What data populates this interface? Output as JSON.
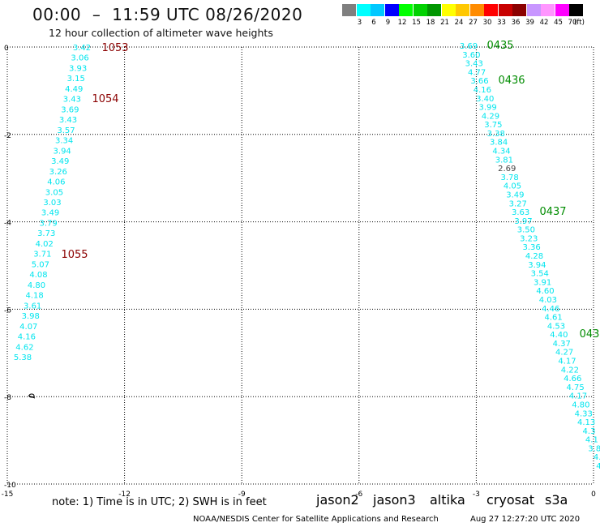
{
  "header": {
    "title": "00:00  –  11:59 UTC 08/26/2020",
    "subtitle": "12 hour collection of altimeter wave heights"
  },
  "colorbar": {
    "colors": [
      "#7f7f7f",
      "#00ffff",
      "#00c8ff",
      "#0000ff",
      "#00ff00",
      "#00d200",
      "#009600",
      "#ffff00",
      "#ffc800",
      "#ff8c00",
      "#ff0000",
      "#c80000",
      "#8b0000",
      "#c896ff",
      "#ff96ff",
      "#ff00ff",
      "#000000"
    ],
    "labels": [
      "3",
      "6",
      "9",
      "12",
      "15",
      "18",
      "21",
      "24",
      "27",
      "30",
      "33",
      "36",
      "39",
      "42",
      "45",
      "70"
    ],
    "unit": "(ft)"
  },
  "axes": {
    "x_ticks": [
      "-15",
      "-12",
      "-9",
      "-6",
      "-3",
      "0"
    ],
    "y_ticks": [
      "0",
      "-2",
      "-4",
      "-6",
      "-8",
      "-10"
    ]
  },
  "measure_color": "#00e5ee",
  "track1": {
    "values": [
      "3.42",
      "3.06",
      "3.93",
      "3.15",
      "4.49",
      "3.43",
      "3.69",
      "3.43",
      "3.57",
      "3.34",
      "3.94",
      "3.49",
      "3.26",
      "4.06",
      "3.05",
      "3.03",
      "3.49",
      "3.79",
      "3.73",
      "4.02",
      "3.71",
      "5.07",
      "4.08",
      "4.80",
      "4.18",
      "3.61",
      "3.98",
      "4.07",
      "4.16",
      "4.62",
      "5.38"
    ],
    "times": [
      {
        "label": "1053",
        "color": "#8b0000"
      },
      {
        "label": "1054",
        "color": "#8b0000"
      },
      {
        "label": "1055",
        "color": "#8b0000"
      }
    ]
  },
  "track2": {
    "values": [
      "3.69",
      "3.60",
      "3.43",
      "4.77",
      "3.66",
      "4.16",
      "3.40",
      "3.99",
      "4.29",
      "3.75",
      "3.38",
      "3.84",
      "4.34",
      "3.81",
      "2.69",
      "3.78",
      "4.05",
      "3.49",
      "3.27",
      "3.63",
      "3.97",
      "3.50",
      "3.23",
      "3.36",
      "4.28",
      "3.94",
      "3.54",
      "3.91",
      "4.60",
      "4.03",
      "4.46",
      "4.61",
      "4.53",
      "4.40",
      "4.37",
      "4.27",
      "4.17",
      "4.22",
      "4.66",
      "4.75",
      "4.17",
      "4.80",
      "4.33",
      "4.13",
      "4.3",
      "4.1",
      "3.8",
      "4.",
      "4."
    ],
    "gray_index": 14,
    "times": [
      {
        "label": "0435",
        "color": "#008c00"
      },
      {
        "label": "0436",
        "color": "#008c00"
      },
      {
        "label": "0437",
        "color": "#008c00"
      },
      {
        "label": "043",
        "color": "#008c00"
      }
    ]
  },
  "footer": {
    "note": "note:  1) Time is in UTC; 2) SWH is in feet",
    "satellites": [
      {
        "name": "jason2",
        "color": "#0000ff"
      },
      {
        "name": "jason3",
        "color": "#008c00"
      },
      {
        "name": "altika",
        "color": "#ff8c00"
      },
      {
        "name": "cryosat",
        "color": "#ff0000"
      },
      {
        "name": "s3a",
        "color": "#8b0000"
      }
    ],
    "credit": "NOAA/NESDIS Center for Satellite Applications and Research",
    "timestamp": "Aug 27 12:27:20 UTC 2020"
  }
}
